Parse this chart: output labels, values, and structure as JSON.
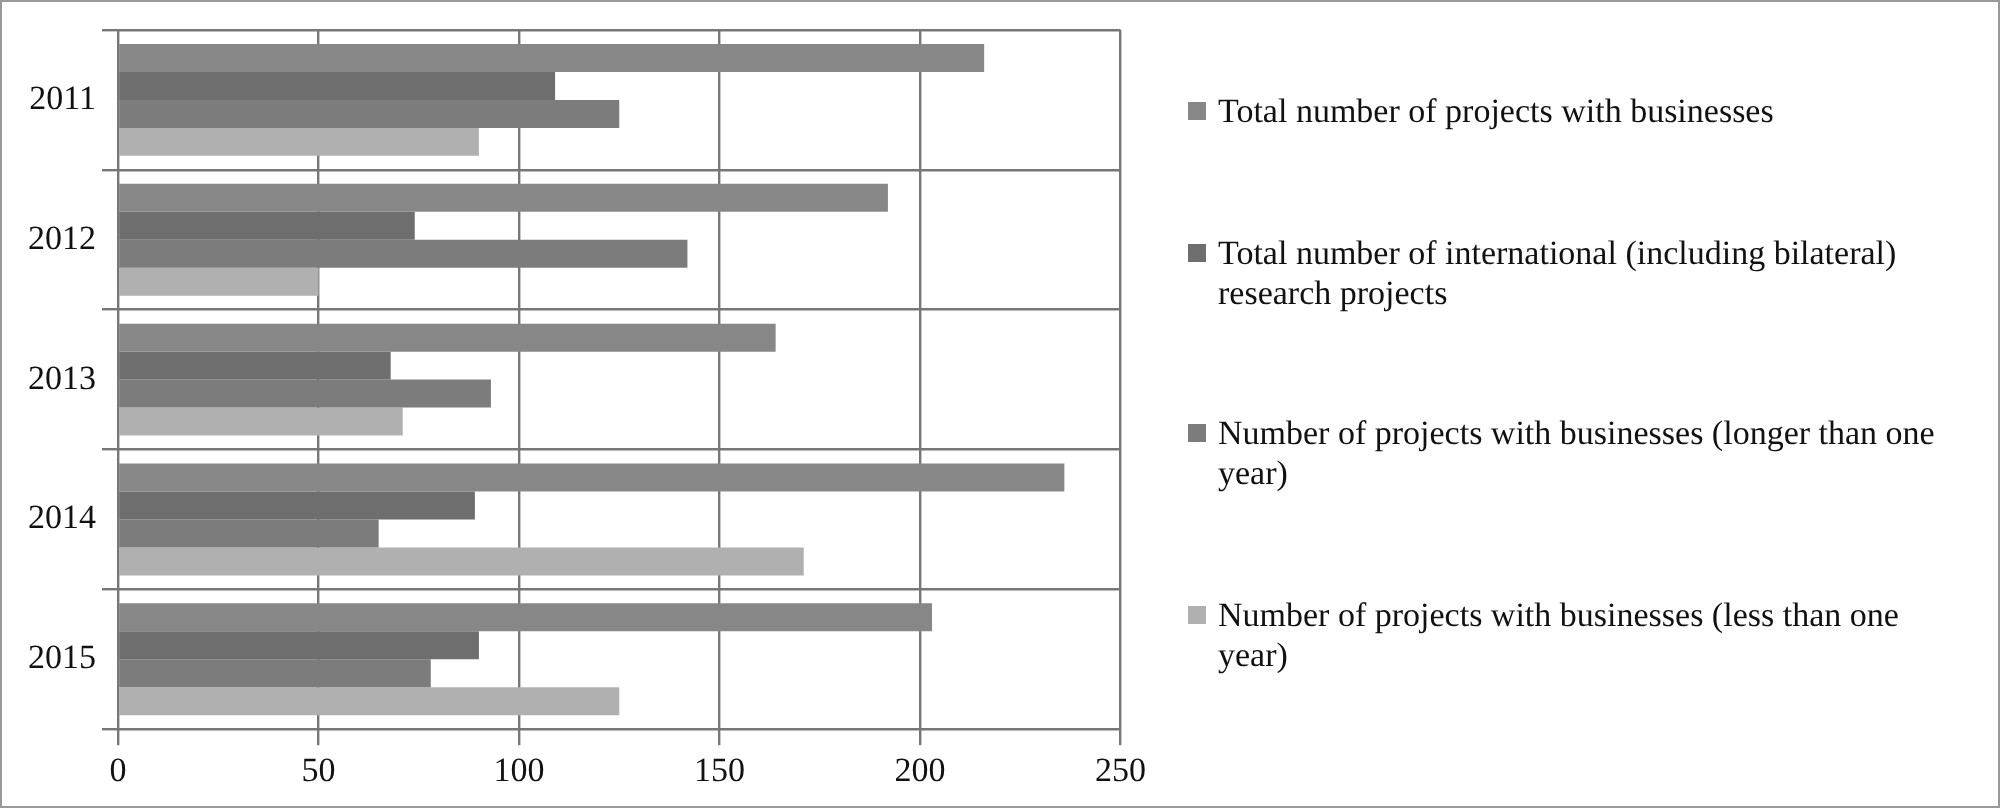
{
  "chart_data": {
    "type": "bar",
    "orientation": "horizontal",
    "categories": [
      "2011",
      "2012",
      "2013",
      "2014",
      "2015"
    ],
    "series": [
      {
        "name": "Total number of projects with businesses",
        "color": "#878787",
        "values": [
          216,
          192,
          164,
          236,
          203
        ]
      },
      {
        "name": "Total number of international (including bilateral) research projects",
        "color": "#6e6e6e",
        "values": [
          109,
          74,
          68,
          89,
          90
        ]
      },
      {
        "name": "Number of projects with businesses (longer than one year)",
        "color": "#7c7c7c",
        "values": [
          125,
          142,
          93,
          65,
          78
        ]
      },
      {
        "name": "Number of projects with businesses (less than one year)",
        "color": "#b0b0b0",
        "values": [
          90,
          50,
          71,
          171,
          125
        ]
      }
    ],
    "xlim": [
      0,
      250
    ],
    "xticks": [
      0,
      50,
      100,
      150,
      200,
      250
    ],
    "grid": true,
    "legend": "right"
  }
}
